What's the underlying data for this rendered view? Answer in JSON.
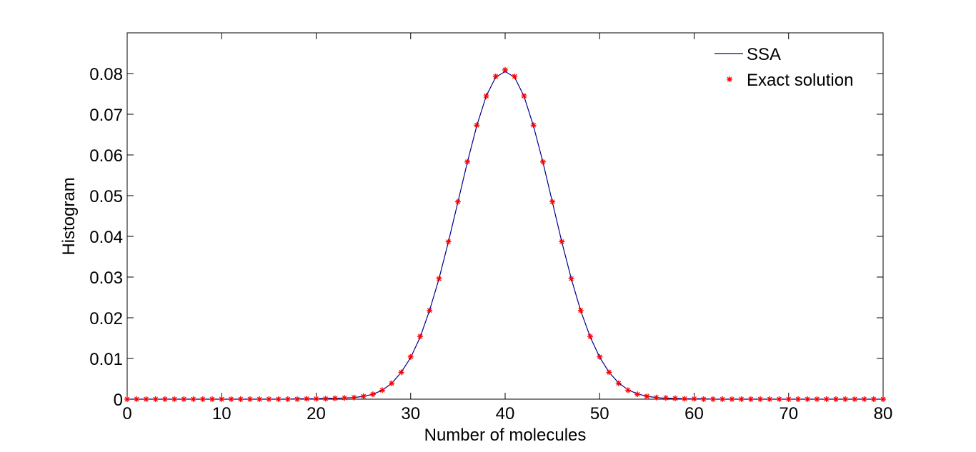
{
  "chart_data": {
    "type": "line",
    "title": "",
    "xlabel": "Number of molecules",
    "ylabel": "Histogram",
    "xlim": [
      0,
      80
    ],
    "ylim": [
      0,
      0.09
    ],
    "xticks": [
      0,
      10,
      20,
      30,
      40,
      50,
      60,
      70,
      80
    ],
    "xtick_labels": [
      "0",
      "10",
      "20",
      "30",
      "40",
      "50",
      "60",
      "70",
      "80"
    ],
    "yticks": [
      0,
      0.01,
      0.02,
      0.03,
      0.04,
      0.05,
      0.06,
      0.07,
      0.08
    ],
    "ytick_labels": [
      "0",
      "0.01",
      "0.02",
      "0.03",
      "0.04",
      "0.05",
      "0.06",
      "0.07",
      "0.08"
    ],
    "grid": false,
    "legend_position": "top-right",
    "x": [
      0,
      1,
      2,
      3,
      4,
      5,
      6,
      7,
      8,
      9,
      10,
      11,
      12,
      13,
      14,
      15,
      16,
      17,
      18,
      19,
      20,
      21,
      22,
      23,
      24,
      25,
      26,
      27,
      28,
      29,
      30,
      31,
      32,
      33,
      34,
      35,
      36,
      37,
      38,
      39,
      40,
      41,
      42,
      43,
      44,
      45,
      46,
      47,
      48,
      49,
      50,
      51,
      52,
      53,
      54,
      55,
      56,
      57,
      58,
      59,
      60,
      61,
      62,
      63,
      64,
      65,
      66,
      67,
      68,
      69,
      70,
      71,
      72,
      73,
      74,
      75,
      76,
      77,
      78,
      79,
      80
    ],
    "series": [
      {
        "name": "SSA",
        "style": "line",
        "color": "#00008b",
        "values": [
          0,
          0,
          0,
          0,
          0,
          0,
          0,
          0,
          0,
          0,
          0,
          0,
          0,
          0,
          0,
          0,
          0,
          0,
          0.0001,
          0.0001,
          0.0001,
          0.0002,
          0.0002,
          0.0003,
          0.0004,
          0.0007,
          0.0012,
          0.0022,
          0.0039,
          0.0066,
          0.0102,
          0.0152,
          0.0218,
          0.0296,
          0.0387,
          0.0484,
          0.0582,
          0.0672,
          0.0745,
          0.0791,
          0.0805,
          0.0791,
          0.0744,
          0.0671,
          0.0582,
          0.0484,
          0.0386,
          0.0296,
          0.0217,
          0.0153,
          0.0103,
          0.0066,
          0.004,
          0.0023,
          0.0013,
          0.0007,
          0.0004,
          0.0002,
          0.0002,
          0.0001,
          0.0001,
          0.0001,
          0,
          0,
          0,
          0,
          0,
          0,
          0,
          0,
          0,
          0,
          0,
          0,
          0,
          0,
          0,
          0,
          0,
          0,
          0
        ]
      },
      {
        "name": "Exact solution",
        "style": "markers",
        "marker": "*",
        "color": "#ff0000",
        "values": [
          0,
          0,
          0,
          0,
          0,
          0,
          0,
          0,
          0,
          0,
          0,
          0,
          0,
          0,
          0,
          0,
          0,
          0,
          0,
          0.0001,
          0.0001,
          0.0001,
          0.0002,
          0.0003,
          0.0004,
          0.0007,
          0.0012,
          0.0022,
          0.0039,
          0.0066,
          0.0104,
          0.0154,
          0.0218,
          0.0296,
          0.0387,
          0.0485,
          0.0583,
          0.0673,
          0.0745,
          0.0793,
          0.0809,
          0.0793,
          0.0745,
          0.0673,
          0.0583,
          0.0485,
          0.0387,
          0.0296,
          0.0218,
          0.0154,
          0.0104,
          0.0066,
          0.0039,
          0.0022,
          0.0012,
          0.0007,
          0.0004,
          0.0003,
          0.0002,
          0.0001,
          0.0001,
          0,
          0,
          0,
          0,
          0,
          0,
          0,
          0,
          0,
          0,
          0,
          0,
          0,
          0,
          0,
          0,
          0,
          0,
          0,
          0
        ]
      }
    ]
  }
}
